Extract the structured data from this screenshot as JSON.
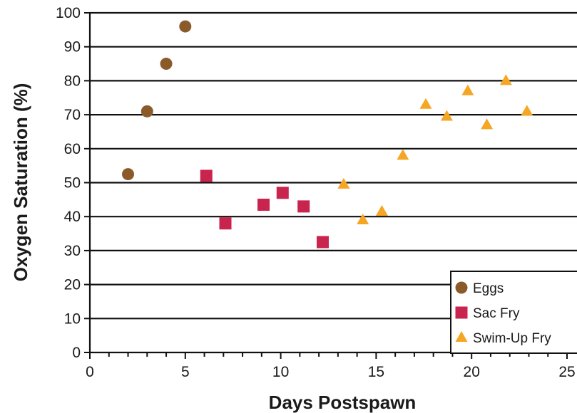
{
  "chart_data": {
    "type": "scatter",
    "title": "",
    "xlabel": "Days Postspawn",
    "ylabel": "Oxygen Saturation (%)",
    "xlim": [
      0,
      25
    ],
    "ylim": [
      0,
      100
    ],
    "xticks": [
      0,
      5,
      10,
      15,
      20,
      25
    ],
    "yticks": [
      0,
      10,
      20,
      30,
      40,
      50,
      60,
      70,
      80,
      90,
      100
    ],
    "grid": "horizontal",
    "legend_position": "bottom-right",
    "series": [
      {
        "name": "Eggs",
        "marker": "circle",
        "color": "#8B5A2B",
        "points": [
          [
            2,
            52.5
          ],
          [
            3,
            71
          ],
          [
            4,
            85
          ],
          [
            5,
            96
          ]
        ]
      },
      {
        "name": "Sac Fry",
        "marker": "square",
        "color": "#C8244E",
        "points": [
          [
            6.1,
            52
          ],
          [
            7.1,
            38
          ],
          [
            9.1,
            43.5
          ],
          [
            10.1,
            47
          ],
          [
            11.2,
            43
          ],
          [
            12.2,
            32.5
          ]
        ]
      },
      {
        "name": "Swim-Up Fry",
        "marker": "triangle",
        "color": "#F5A623",
        "points": [
          [
            13.3,
            49.5
          ],
          [
            14.3,
            39
          ],
          [
            15.3,
            41.5
          ],
          [
            16.4,
            58
          ],
          [
            17.6,
            73
          ],
          [
            18.7,
            69.5
          ],
          [
            19.8,
            77
          ],
          [
            20.8,
            67
          ],
          [
            21.8,
            80
          ],
          [
            22.9,
            71
          ]
        ]
      }
    ]
  }
}
